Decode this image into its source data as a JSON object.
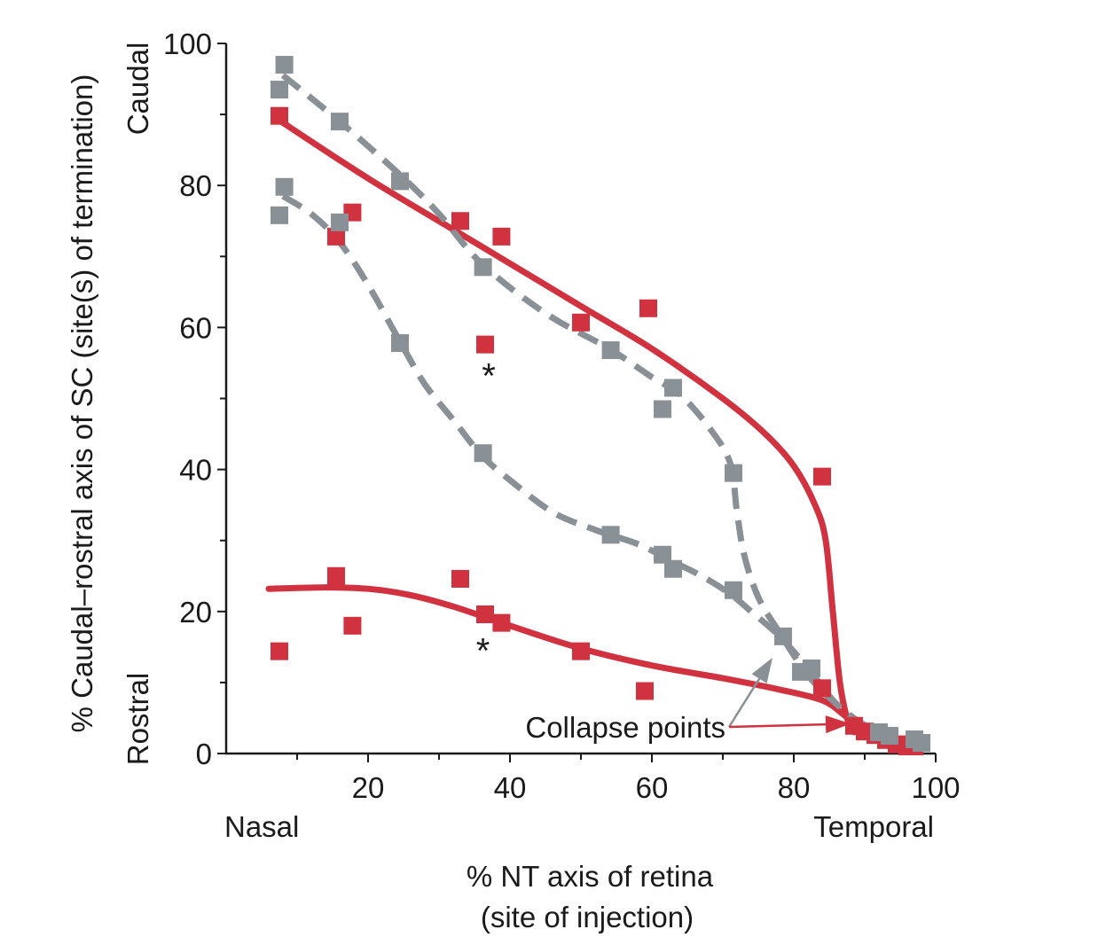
{
  "chart_data": {
    "type": "scatter",
    "xlabel_lines": [
      "% NT axis of retina",
      "(site of injection)"
    ],
    "ylabel": "% Caudal–rostral axis of SC (site(s) of termination)",
    "xlim": [
      0,
      100
    ],
    "ylim": [
      0,
      100
    ],
    "x_ticks": [
      20,
      40,
      60,
      80,
      100
    ],
    "y_ticks": [
      0,
      20,
      40,
      60,
      80,
      100
    ],
    "x_end_labels": {
      "left": "Nasal",
      "right": "Temporal"
    },
    "y_end_labels": {
      "top": "Caudal",
      "bottom": "Rostral"
    },
    "annotation": "Collapse points",
    "asterisk": "*",
    "colors": {
      "red": "#d0323f",
      "gray": "#8a9196",
      "axis": "#1a1a1a"
    },
    "series": [
      {
        "color": "red",
        "marker": "square",
        "points": [
          [
            7.5,
            89.8
          ],
          [
            15.5,
            72.8
          ],
          [
            17.8,
            76.2
          ],
          [
            33,
            75
          ],
          [
            38.8,
            72.8
          ],
          [
            36.5,
            57.6
          ],
          [
            50,
            60.7
          ],
          [
            59.5,
            62.7
          ],
          [
            84,
            39
          ],
          [
            7.5,
            14.4
          ],
          [
            15.5,
            25
          ],
          [
            17.8,
            18
          ],
          [
            33,
            24.6
          ],
          [
            36.5,
            19.6
          ],
          [
            38.8,
            18.4
          ],
          [
            50,
            14.4
          ],
          [
            59,
            8.8
          ],
          [
            84,
            9.2
          ],
          [
            88.5,
            3.9
          ],
          [
            90,
            3.1
          ],
          [
            91.5,
            2.6
          ],
          [
            93,
            1.9
          ],
          [
            94.5,
            1.3
          ],
          [
            96,
            1
          ],
          [
            97,
            1
          ]
        ]
      },
      {
        "color": "gray",
        "marker": "square",
        "points": [
          [
            7.5,
            93.5
          ],
          [
            8.2,
            97
          ],
          [
            16,
            89
          ],
          [
            24.5,
            80.6
          ],
          [
            36.2,
            68.5
          ],
          [
            54.2,
            56.8
          ],
          [
            61.5,
            48.5
          ],
          [
            63,
            51.5
          ],
          [
            71.5,
            39.5
          ],
          [
            8.2,
            79.8
          ],
          [
            7.5,
            75.8
          ],
          [
            16,
            74.8
          ],
          [
            24.5,
            57.8
          ],
          [
            36.2,
            42.3
          ],
          [
            54.2,
            30.8
          ],
          [
            61.5,
            28
          ],
          [
            63,
            26
          ],
          [
            71.5,
            23
          ],
          [
            78.5,
            16.5
          ],
          [
            81,
            11.5
          ],
          [
            82.5,
            12
          ],
          [
            92,
            3
          ],
          [
            93.5,
            2.5
          ],
          [
            97,
            2
          ],
          [
            98,
            1.5
          ]
        ]
      }
    ],
    "fit_lines": [
      {
        "color": "red",
        "style": "solid",
        "points": [
          [
            7,
            89.5
          ],
          [
            20,
            81
          ],
          [
            35,
            72
          ],
          [
            50,
            63
          ],
          [
            60,
            57
          ],
          [
            70,
            50
          ],
          [
            76,
            45
          ],
          [
            80,
            40.5
          ],
          [
            83,
            35
          ],
          [
            84.5,
            30
          ],
          [
            85.5,
            20
          ],
          [
            86.5,
            10
          ],
          [
            87.5,
            5
          ],
          [
            88.5,
            3
          ]
        ]
      },
      {
        "color": "red",
        "style": "solid",
        "points": [
          [
            6,
            23.2
          ],
          [
            14,
            23.4
          ],
          [
            20,
            23.2
          ],
          [
            26,
            22.3
          ],
          [
            32,
            20.7
          ],
          [
            40,
            18
          ],
          [
            50,
            14.8
          ],
          [
            60,
            12.4
          ],
          [
            70,
            10.6
          ],
          [
            78,
            9
          ],
          [
            84,
            7.5
          ],
          [
            87,
            5.5
          ],
          [
            89,
            3.8
          ]
        ]
      },
      {
        "color": "gray",
        "style": "dashed",
        "points": [
          [
            8,
            95.5
          ],
          [
            16,
            89
          ],
          [
            24.5,
            81.5
          ],
          [
            30,
            76
          ],
          [
            36,
            69
          ],
          [
            45,
            62
          ],
          [
            54,
            57
          ],
          [
            60,
            53
          ],
          [
            64,
            50.5
          ],
          [
            68,
            46
          ],
          [
            71,
            41
          ],
          [
            72,
            34
          ],
          [
            73,
            28
          ],
          [
            75,
            22
          ],
          [
            78,
            17
          ],
          [
            82,
            11
          ],
          [
            86,
            7
          ],
          [
            90,
            4
          ],
          [
            94,
            2.4
          ],
          [
            97,
            2
          ]
        ]
      },
      {
        "color": "gray",
        "style": "dashed",
        "points": [
          [
            8,
            78.5
          ],
          [
            12,
            76
          ],
          [
            16,
            72
          ],
          [
            20,
            66
          ],
          [
            24.5,
            58
          ],
          [
            28,
            52
          ],
          [
            32,
            47
          ],
          [
            36,
            42
          ],
          [
            40,
            38.5
          ],
          [
            46,
            34
          ],
          [
            52,
            31.5
          ],
          [
            58,
            29.5
          ],
          [
            63,
            27
          ],
          [
            67,
            25
          ],
          [
            71,
            22.5
          ],
          [
            74,
            20
          ],
          [
            78,
            16.5
          ],
          [
            82,
            12
          ],
          [
            86,
            7
          ],
          [
            90,
            4
          ],
          [
            94,
            2.5
          ],
          [
            97,
            2
          ]
        ]
      }
    ],
    "asterisk_positions": [
      [
        37,
        54.5
      ],
      [
        36.2,
        15.8
      ]
    ],
    "collapse_targets": [
      {
        "color": "gray",
        "point": [
          77,
          13.5
        ]
      },
      {
        "color": "red",
        "point": [
          88,
          4.2
        ]
      }
    ]
  }
}
